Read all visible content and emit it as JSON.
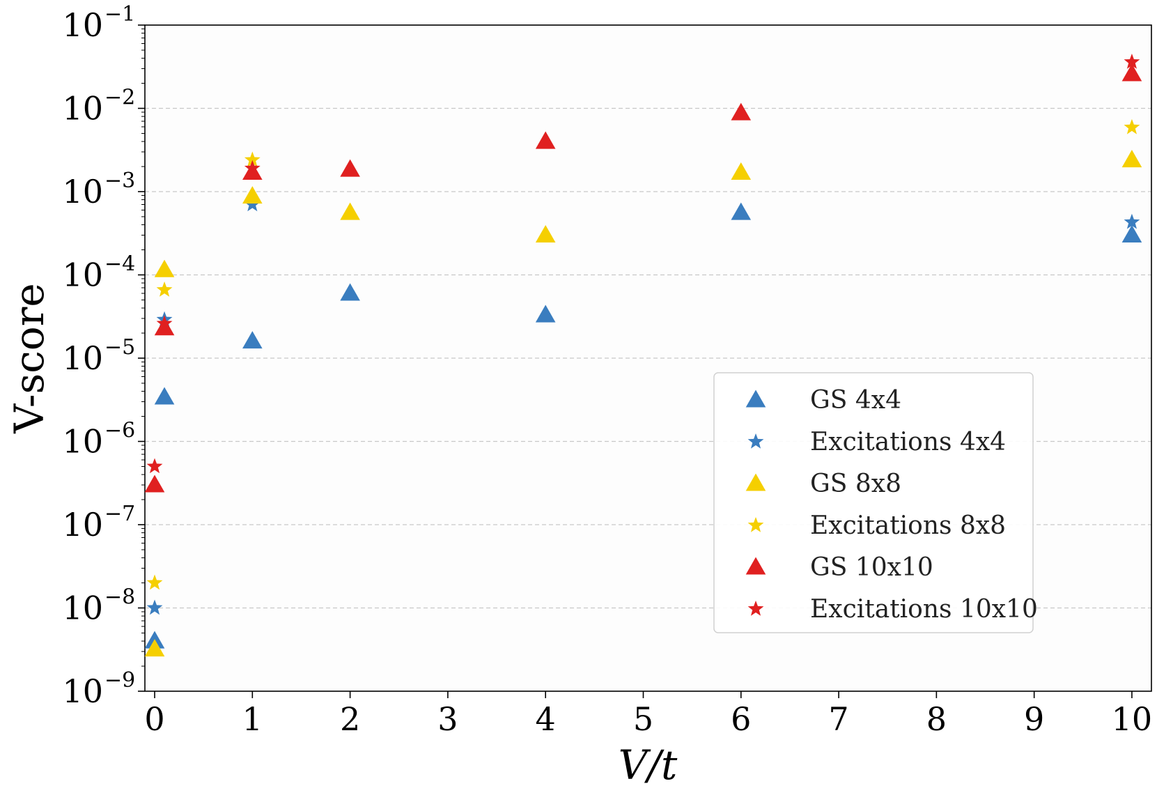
{
  "chart_data": {
    "type": "scatter",
    "title": "",
    "xlabel": "V/t",
    "ylabel": "V-score",
    "xlim": [
      -0.1,
      10.2
    ],
    "ylim": [
      1e-09,
      0.1
    ],
    "yscale": "log",
    "grid": "horizontal dashed",
    "legend_position": "center-right",
    "xticks": [
      "0",
      "1",
      "2",
      "3",
      "4",
      "5",
      "6",
      "7",
      "8",
      "9",
      "10"
    ],
    "yticks": [
      {
        "base": "10",
        "exp": "−9"
      },
      {
        "base": "10",
        "exp": "−8"
      },
      {
        "base": "10",
        "exp": "−7"
      },
      {
        "base": "10",
        "exp": "−6"
      },
      {
        "base": "10",
        "exp": "−5"
      },
      {
        "base": "10",
        "exp": "−4"
      },
      {
        "base": "10",
        "exp": "−3"
      },
      {
        "base": "10",
        "exp": "−2"
      },
      {
        "base": "10",
        "exp": "−1"
      }
    ],
    "series": [
      {
        "name": "GS 4x4",
        "marker": "triangle",
        "color": "#3a7dbf",
        "x": [
          0,
          0.1,
          1,
          2,
          4,
          6,
          10
        ],
        "y": [
          4e-09,
          3.4e-06,
          1.6e-05,
          6e-05,
          3.3e-05,
          0.00056,
          0.0003
        ]
      },
      {
        "name": "Excitations 4x4",
        "marker": "star",
        "color": "#3a7dbf",
        "x": [
          0,
          0.1,
          1,
          10
        ],
        "y": [
          1e-08,
          2.9e-05,
          0.0007,
          0.00043
        ]
      },
      {
        "name": "GS 8x8",
        "marker": "triangle",
        "color": "#f5cf00",
        "x": [
          0,
          0.1,
          1,
          2,
          4,
          6,
          10
        ],
        "y": [
          3.2e-09,
          0.000115,
          0.00088,
          0.00056,
          0.0003,
          0.0017,
          0.0024
        ]
      },
      {
        "name": "Excitations 8x8",
        "marker": "star",
        "color": "#f5cf00",
        "x": [
          0,
          0.1,
          1,
          10
        ],
        "y": [
          2e-08,
          6.6e-05,
          0.0024,
          0.0059
        ]
      },
      {
        "name": "GS 10x10",
        "marker": "triangle",
        "color": "#e02020",
        "x": [
          0,
          0.1,
          1,
          2,
          4,
          6,
          10
        ],
        "y": [
          3e-07,
          2.3e-05,
          0.0017,
          0.00185,
          0.004,
          0.0088,
          0.026
        ]
      },
      {
        "name": "Excitations 10x10",
        "marker": "star",
        "color": "#e02020",
        "x": [
          0,
          0.1,
          1,
          10
        ],
        "y": [
          5e-07,
          2.6e-05,
          0.0019,
          0.036
        ]
      }
    ]
  }
}
